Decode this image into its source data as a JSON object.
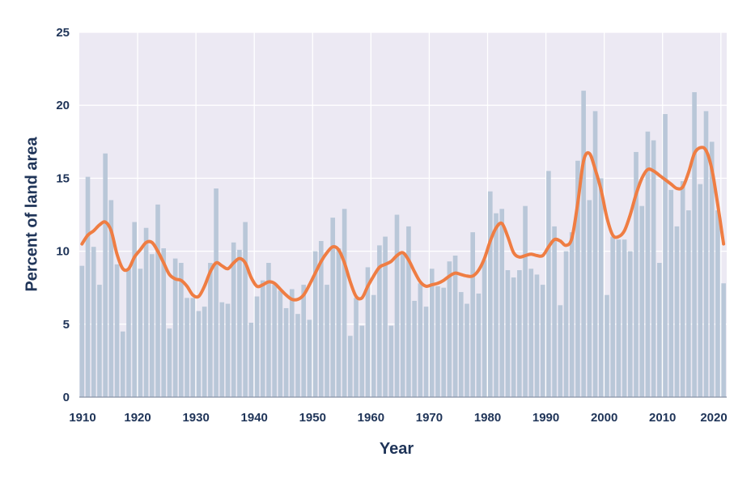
{
  "chart_data": {
    "type": "bar",
    "xlabel": "Year",
    "ylabel": "Percent of land area",
    "xlim": [
      1910,
      2021
    ],
    "ylim": [
      0,
      25
    ],
    "x_ticks": [
      1910,
      1920,
      1930,
      1940,
      1950,
      1960,
      1970,
      1980,
      1990,
      2000,
      2010,
      2020
    ],
    "y_ticks": [
      0,
      5,
      10,
      15,
      20,
      25
    ],
    "grid": true,
    "colors": {
      "bars": "#b9c7d8",
      "line": "#ef7d43",
      "plot_bg": "#ece9f3",
      "grid": "#ffffff",
      "text": "#1f3458"
    },
    "series": [
      {
        "kind": "bar",
        "years": [
          1910,
          1911,
          1912,
          1913,
          1914,
          1915,
          1916,
          1917,
          1918,
          1919,
          1920,
          1921,
          1922,
          1923,
          1924,
          1925,
          1926,
          1927,
          1928,
          1929,
          1930,
          1931,
          1932,
          1933,
          1934,
          1935,
          1936,
          1937,
          1938,
          1939,
          1940,
          1941,
          1942,
          1943,
          1944,
          1945,
          1946,
          1947,
          1948,
          1949,
          1950,
          1951,
          1952,
          1953,
          1954,
          1955,
          1956,
          1957,
          1958,
          1959,
          1960,
          1961,
          1962,
          1963,
          1964,
          1965,
          1966,
          1967,
          1968,
          1969,
          1970,
          1971,
          1972,
          1973,
          1974,
          1975,
          1976,
          1977,
          1978,
          1979,
          1980,
          1981,
          1982,
          1983,
          1984,
          1985,
          1986,
          1987,
          1988,
          1989,
          1990,
          1991,
          1992,
          1993,
          1994,
          1995,
          1996,
          1997,
          1998,
          1999,
          2000,
          2001,
          2002,
          2003,
          2004,
          2005,
          2006,
          2007,
          2008,
          2009,
          2010,
          2011,
          2012,
          2013,
          2014,
          2015,
          2016,
          2017,
          2018,
          2019,
          2020
        ],
        "values": [
          9.0,
          15.1,
          10.3,
          7.7,
          16.7,
          13.5,
          9.1,
          4.5,
          8.8,
          12.0,
          8.8,
          11.6,
          9.8,
          13.2,
          10.2,
          4.7,
          9.5,
          9.2,
          6.8,
          6.8,
          5.9,
          6.2,
          9.2,
          14.3,
          6.5,
          6.4,
          10.6,
          10.1,
          12.0,
          5.1,
          6.9,
          8.0,
          9.2,
          7.7,
          7.3,
          6.1,
          7.4,
          5.7,
          7.7,
          5.3,
          10.0,
          10.7,
          7.7,
          12.3,
          10.2,
          12.9,
          4.2,
          6.8,
          4.9,
          8.9,
          7.0,
          10.4,
          11.0,
          4.9,
          12.5,
          9.9,
          11.7,
          6.6,
          7.8,
          6.2,
          8.8,
          7.6,
          7.5,
          9.3,
          9.7,
          7.2,
          6.4,
          11.3,
          7.1,
          9.4,
          14.1,
          12.6,
          12.9,
          8.7,
          8.2,
          8.7,
          13.1,
          8.8,
          8.4,
          7.7,
          15.5,
          11.7,
          6.3,
          10.0,
          11.3,
          16.2,
          21.0,
          13.5,
          19.6,
          15.0,
          7.0,
          11.0,
          10.8,
          10.8,
          10.0,
          16.8,
          13.1,
          18.2,
          17.6,
          9.2,
          19.4,
          14.2,
          11.7,
          14.8,
          12.8,
          20.9,
          14.6,
          19.6,
          17.5,
          12.8,
          7.8
        ]
      },
      {
        "kind": "line",
        "years": [
          1910,
          1911,
          1912,
          1913,
          1914,
          1915,
          1916,
          1917,
          1918,
          1919,
          1920,
          1921,
          1922,
          1923,
          1924,
          1925,
          1926,
          1927,
          1928,
          1929,
          1930,
          1931,
          1932,
          1933,
          1934,
          1935,
          1936,
          1937,
          1938,
          1939,
          1940,
          1941,
          1942,
          1943,
          1944,
          1945,
          1946,
          1947,
          1948,
          1949,
          1950,
          1951,
          1952,
          1953,
          1954,
          1955,
          1956,
          1957,
          1958,
          1959,
          1960,
          1961,
          1962,
          1963,
          1964,
          1965,
          1966,
          1967,
          1968,
          1969,
          1970,
          1971,
          1972,
          1973,
          1974,
          1975,
          1976,
          1977,
          1978,
          1979,
          1980,
          1981,
          1982,
          1983,
          1984,
          1985,
          1986,
          1987,
          1988,
          1989,
          1990,
          1991,
          1992,
          1993,
          1994,
          1995,
          1996,
          1997,
          1998,
          1999,
          2000,
          2001,
          2002,
          2003,
          2004,
          2005,
          2006,
          2007,
          2008,
          2009,
          2010,
          2011,
          2012,
          2013,
          2014,
          2015,
          2016,
          2017,
          2018,
          2019,
          2020
        ],
        "values": [
          10.5,
          11.1,
          11.4,
          11.8,
          12.0,
          11.4,
          9.8,
          8.8,
          8.8,
          9.6,
          10.1,
          10.6,
          10.6,
          10.0,
          9.2,
          8.4,
          8.1,
          8.0,
          7.6,
          7.0,
          6.9,
          7.6,
          8.6,
          9.2,
          9.0,
          8.8,
          9.2,
          9.5,
          9.2,
          8.2,
          7.6,
          7.7,
          7.9,
          7.8,
          7.4,
          7.0,
          6.7,
          6.7,
          7.0,
          7.7,
          8.5,
          9.3,
          9.9,
          10.3,
          10.1,
          9.2,
          7.9,
          6.9,
          6.8,
          7.6,
          8.3,
          8.9,
          9.1,
          9.3,
          9.7,
          9.9,
          9.4,
          8.6,
          7.9,
          7.6,
          7.7,
          7.8,
          8.0,
          8.3,
          8.5,
          8.4,
          8.3,
          8.3,
          8.7,
          9.5,
          10.7,
          11.6,
          11.9,
          11.0,
          9.9,
          9.6,
          9.7,
          9.8,
          9.7,
          9.7,
          10.3,
          10.8,
          10.7,
          10.4,
          10.9,
          13.3,
          16.2,
          16.7,
          15.6,
          14.2,
          12.3,
          11.1,
          11.0,
          11.4,
          12.5,
          13.9,
          15.0,
          15.6,
          15.5,
          15.2,
          14.9,
          14.6,
          14.3,
          14.4,
          15.4,
          16.7,
          17.1,
          16.9,
          15.6,
          13.2,
          10.5
        ]
      }
    ]
  }
}
